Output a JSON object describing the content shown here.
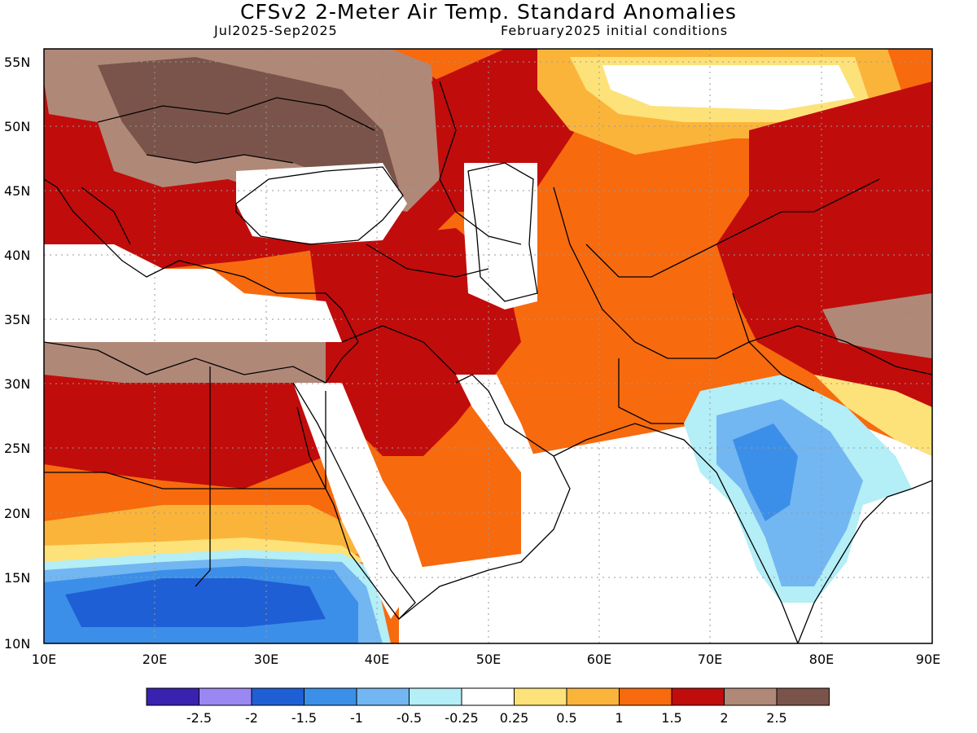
{
  "header": {
    "title": "CFSv2 2-Meter Air Temp. Standard Anomalies",
    "period": "Jul2025-Sep2025",
    "init": "February2025 initial conditions"
  },
  "axes": {
    "lat_labels": [
      "55N",
      "50N",
      "45N",
      "40N",
      "35N",
      "30N",
      "25N",
      "20N",
      "15N",
      "10N"
    ],
    "lon_labels": [
      "10E",
      "20E",
      "30E",
      "40E",
      "50E",
      "60E",
      "70E",
      "80E",
      "90E"
    ]
  },
  "legend": {
    "colors": [
      "#3a22b0",
      "#9b87f2",
      "#1f5fd6",
      "#3b8fe8",
      "#72b6f2",
      "#b4eef6",
      "#ffffff",
      "#fde27a",
      "#fbb43a",
      "#f76a0e",
      "#c10c0c",
      "#b08878",
      "#7a544a"
    ],
    "labels": [
      "-2.5",
      "-2",
      "-1.5",
      "-1",
      "-0.5",
      "-0.25",
      "0.25",
      "0.5",
      "1",
      "1.5",
      "2",
      "2.5"
    ]
  }
}
